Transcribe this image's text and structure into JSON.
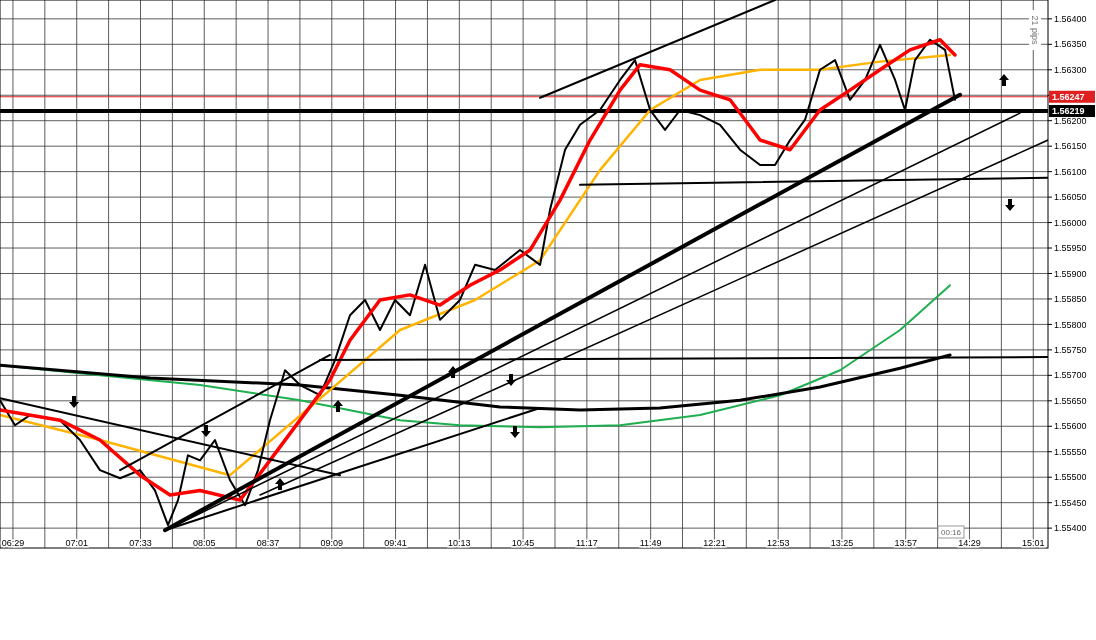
{
  "chart_data": {
    "type": "line",
    "xlim": [
      6.375,
      15.14
    ],
    "ylim": [
      1.55361,
      1.56437
    ],
    "xticks": [
      {
        "value": 6.4833,
        "label": "06:29"
      },
      {
        "value": 6.75,
        "label": null
      },
      {
        "value": 7.0167,
        "label": "07:01"
      },
      {
        "value": 7.2833,
        "label": null
      },
      {
        "value": 7.55,
        "label": "07:33"
      },
      {
        "value": 7.8167,
        "label": null
      },
      {
        "value": 8.0833,
        "label": "08:05"
      },
      {
        "value": 8.35,
        "label": null
      },
      {
        "value": 8.6167,
        "label": "08:37"
      },
      {
        "value": 8.8833,
        "label": null
      },
      {
        "value": 9.15,
        "label": "09:09"
      },
      {
        "value": 9.4167,
        "label": null
      },
      {
        "value": 9.6833,
        "label": "09:41"
      },
      {
        "value": 9.95,
        "label": null
      },
      {
        "value": 10.2167,
        "label": "10:13"
      },
      {
        "value": 10.4833,
        "label": null
      },
      {
        "value": 10.75,
        "label": "10:45"
      },
      {
        "value": 11.0167,
        "label": null
      },
      {
        "value": 11.2833,
        "label": "11:17"
      },
      {
        "value": 11.55,
        "label": null
      },
      {
        "value": 11.8167,
        "label": "11:49"
      },
      {
        "value": 12.0833,
        "label": null
      },
      {
        "value": 12.35,
        "label": "12:21"
      },
      {
        "value": 12.6167,
        "label": null
      },
      {
        "value": 12.8833,
        "label": "12:53"
      },
      {
        "value": 13.15,
        "label": null
      },
      {
        "value": 13.4167,
        "label": "13:25"
      },
      {
        "value": 13.6833,
        "label": null
      },
      {
        "value": 13.95,
        "label": "13:57"
      },
      {
        "value": 14.2167,
        "label": null
      },
      {
        "value": 14.4833,
        "label": "14:29"
      },
      {
        "value": 14.75,
        "label": null
      },
      {
        "value": 15.0167,
        "label": "15:01"
      }
    ],
    "yticks": [
      {
        "value": 1.554,
        "label": "1.55400"
      },
      {
        "value": 1.5545,
        "label": "1.55450"
      },
      {
        "value": 1.555,
        "label": "1.55500"
      },
      {
        "value": 1.5555,
        "label": "1.55550"
      },
      {
        "value": 1.556,
        "label": "1.55600"
      },
      {
        "value": 1.5565,
        "label": "1.55650"
      },
      {
        "value": 1.557,
        "label": "1.55700"
      },
      {
        "value": 1.5575,
        "label": "1.55750"
      },
      {
        "value": 1.558,
        "label": "1.55800"
      },
      {
        "value": 1.5585,
        "label": "1.55850"
      },
      {
        "value": 1.559,
        "label": "1.55900"
      },
      {
        "value": 1.5595,
        "label": "1.55950"
      },
      {
        "value": 1.56,
        "label": "1.56000"
      },
      {
        "value": 1.5605,
        "label": "1.56050"
      },
      {
        "value": 1.561,
        "label": "1.56100"
      },
      {
        "value": 1.5615,
        "label": "1.56150"
      },
      {
        "value": 1.562,
        "label": "1.56200"
      },
      {
        "value": 1.5625,
        "label": null
      },
      {
        "value": 1.563,
        "label": "1.56300"
      },
      {
        "value": 1.5635,
        "label": "1.56350"
      },
      {
        "value": 1.564,
        "label": "1.56400"
      }
    ],
    "grid": true,
    "marker": "none",
    "line_style": "solid",
    "series": [
      {
        "color": "#1fae50",
        "x": [
          6.375,
          7.211,
          8.048,
          8.884,
          9.721,
          10.222,
          10.892,
          11.561,
          12.23,
          12.899,
          13.401,
          13.903,
          14.321
        ],
        "values": [
          1.5572,
          1.557,
          1.55681,
          1.55651,
          1.55612,
          1.55602,
          1.55598,
          1.55602,
          1.55622,
          1.55661,
          1.5571,
          1.55789,
          1.55877
        ]
      },
      {
        "color": "#000000",
        "x": [
          6.375,
          7.63,
          8.884,
          9.721,
          10.557,
          11.226,
          11.895,
          12.564,
          13.233,
          13.903,
          14.321
        ],
        "values": [
          1.5572,
          1.55695,
          1.55681,
          1.55661,
          1.55638,
          1.55632,
          1.55636,
          1.55651,
          1.55677,
          1.55714,
          1.5574
        ]
      },
      {
        "color": "#ffb400",
        "x": [
          6.375,
          7.211,
          8.299,
          9.135,
          9.721,
          10.348,
          10.892,
          11.393,
          11.812,
          12.23,
          12.732,
          13.233,
          13.735,
          14.321
        ],
        "values": [
          1.55622,
          1.55573,
          1.55504,
          1.55671,
          1.55789,
          1.55848,
          1.55926,
          1.56103,
          1.56221,
          1.5628,
          1.563,
          1.563,
          1.56316,
          1.56329
        ]
      },
      {
        "color": "#000000",
        "x": [
          6.375,
          6.5,
          6.626,
          6.877,
          7.044,
          7.211,
          7.379,
          7.546,
          7.671,
          7.78,
          7.864,
          7.947,
          8.048,
          8.173,
          8.299,
          8.424,
          8.533,
          8.633,
          8.759,
          8.884,
          9.051,
          9.177,
          9.302,
          9.428,
          9.553,
          9.679,
          9.804,
          9.93,
          10.055,
          10.222,
          10.348,
          10.515,
          10.724,
          10.892,
          10.975,
          11.101,
          11.226,
          11.393,
          11.561,
          11.686,
          11.812,
          11.937,
          12.063,
          12.23,
          12.397,
          12.564,
          12.732,
          12.857,
          12.983,
          13.108,
          13.233,
          13.359,
          13.484,
          13.61,
          13.735,
          13.861,
          13.944,
          14.028,
          14.153,
          14.279,
          14.362
        ],
        "values": [
          1.55651,
          1.55602,
          1.55622,
          1.55612,
          1.55573,
          1.55514,
          1.55498,
          1.55514,
          1.55474,
          1.55406,
          1.55455,
          1.55543,
          1.55533,
          1.55573,
          1.55494,
          1.55445,
          1.55514,
          1.55612,
          1.5571,
          1.55681,
          1.55661,
          1.5573,
          1.55818,
          1.55848,
          1.55789,
          1.55848,
          1.55818,
          1.55917,
          1.55809,
          1.55848,
          1.55917,
          1.55907,
          1.55946,
          1.55917,
          1.56025,
          1.56143,
          1.56192,
          1.56221,
          1.5628,
          1.56319,
          1.56221,
          1.56182,
          1.56221,
          1.56211,
          1.56192,
          1.56143,
          1.56113,
          1.56113,
          1.56162,
          1.56202,
          1.563,
          1.56319,
          1.56241,
          1.5628,
          1.56349,
          1.5628,
          1.56221,
          1.56319,
          1.56359,
          1.56339,
          1.56241
        ]
      },
      {
        "color": "#ff0000",
        "x": [
          6.375,
          6.877,
          7.211,
          7.546,
          7.797,
          8.048,
          8.382,
          8.633,
          8.884,
          9.135,
          9.302,
          9.553,
          9.804,
          10.055,
          10.306,
          10.557,
          10.808,
          11.059,
          11.31,
          11.561,
          11.728,
          11.979,
          12.23,
          12.481,
          12.732,
          12.983,
          13.233,
          13.484,
          13.735,
          13.986,
          14.237,
          14.362
        ],
        "values": [
          1.55632,
          1.55612,
          1.55573,
          1.55504,
          1.55465,
          1.55474,
          1.55455,
          1.55533,
          1.55612,
          1.55691,
          1.55769,
          1.55848,
          1.55858,
          1.55838,
          1.55877,
          1.55907,
          1.55946,
          1.56044,
          1.56162,
          1.5626,
          1.5631,
          1.563,
          1.5626,
          1.56241,
          1.56162,
          1.56143,
          1.56221,
          1.5626,
          1.563,
          1.56339,
          1.56359,
          1.56329
        ]
      },
      {
        "color": "#000000",
        "x": [
          7.755,
          14.404
        ],
        "values": [
          1.55396,
          1.56251
        ]
      },
      {
        "color": "#000000",
        "x": [
          7.797,
          14.906
        ],
        "values": [
          1.554,
          1.56215
        ]
      },
      {
        "color": "#000000",
        "x": [
          8.55,
          15.14
        ],
        "values": [
          1.55465,
          1.56162
        ]
      },
      {
        "color": "#000000",
        "x": [
          10.892,
          12.857
        ],
        "values": [
          1.56245,
          1.56437
        ]
      },
      {
        "color": "#000000",
        "x": [
          11.226,
          15.14
        ],
        "values": [
          1.56074,
          1.56088
        ]
      },
      {
        "color": "#000000",
        "x": [
          9.051,
          15.14
        ],
        "values": [
          1.5573,
          1.55736
        ]
      },
      {
        "color": "#000000",
        "x": [
          6.375,
          9.219
        ],
        "values": [
          1.55655,
          1.55504
        ]
      },
      {
        "color": "#000000",
        "x": [
          7.379,
          9.135
        ],
        "values": [
          1.55514,
          1.5574
        ]
      },
      {
        "color": "#000000",
        "x": [
          7.755,
          10.892
        ],
        "values": [
          1.55396,
          1.55636
        ]
      }
    ],
    "ref_lines": [
      {
        "axis": "y",
        "value": 1.56247,
        "label": "1.56247",
        "color": "#e02020"
      },
      {
        "axis": "y",
        "value": 1.56219,
        "label": "1.56219",
        "color": "#000000"
      }
    ],
    "annotations": [
      "21 pips",
      "00:16"
    ]
  }
}
